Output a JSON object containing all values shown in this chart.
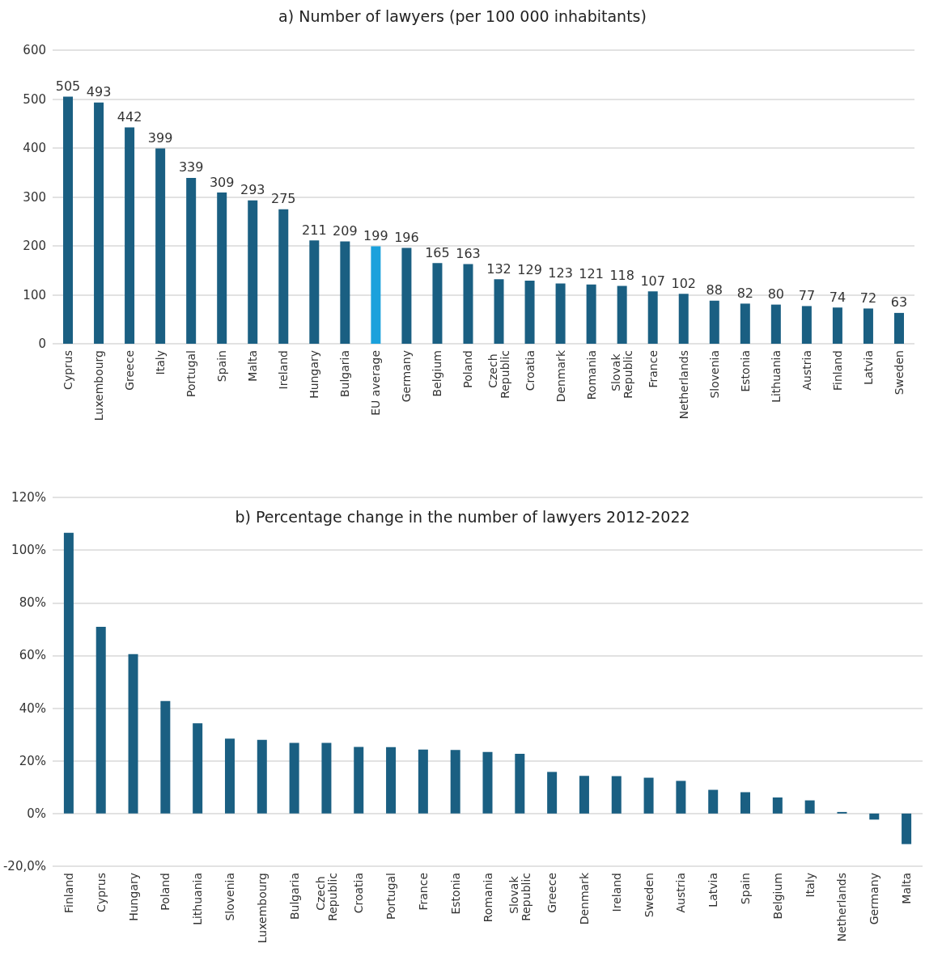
{
  "chart_data": [
    {
      "type": "bar",
      "title": "a) Number of lawyers (per 100 000 inhabitants)",
      "categories": [
        "Cyprus",
        "Luxembourg",
        "Greece",
        "Italy",
        "Portugal",
        "Spain",
        "Malta",
        "Ireland",
        "Hungary",
        "Bulgaria",
        "EU average",
        "Germany",
        "Belgium",
        "Poland",
        "Czech Republic",
        "Croatia",
        "Denmark",
        "Romania",
        "Slovak Republic",
        "France",
        "Netherlands",
        "Slovenia",
        "Estonia",
        "Lithuania",
        "Austria",
        "Finland",
        "Latvia",
        "Sweden"
      ],
      "values": [
        505,
        493,
        442,
        399,
        339,
        309,
        293,
        275,
        211,
        209,
        199,
        196,
        165,
        163,
        132,
        129,
        123,
        121,
        118,
        107,
        102,
        88,
        82,
        80,
        77,
        74,
        72,
        63
      ],
      "colors": [
        "#1a5f82",
        "#1a5f82",
        "#1a5f82",
        "#1a5f82",
        "#1a5f82",
        "#1a5f82",
        "#1a5f82",
        "#1a5f82",
        "#1a5f82",
        "#1a5f82",
        "#1ba1dc",
        "#1a5f82",
        "#1a5f82",
        "#1a5f82",
        "#1a5f82",
        "#1a5f82",
        "#1a5f82",
        "#1a5f82",
        "#1a5f82",
        "#1a5f82",
        "#1a5f82",
        "#1a5f82",
        "#1a5f82",
        "#1a5f82",
        "#1a5f82",
        "#1a5f82",
        "#1a5f82",
        "#1a5f82"
      ],
      "ylim": [
        0,
        600
      ],
      "yticks": [
        0,
        100,
        200,
        300,
        400,
        500,
        600
      ],
      "grid": "y",
      "data_labels": true
    },
    {
      "type": "bar",
      "title": "b) Percentage change in the number of lawyers 2012-2022",
      "categories": [
        "Finland",
        "Cyprus",
        "Hungary",
        "Poland",
        "Lithuania",
        "Slovenia",
        "Luxembourg",
        "Bulgaria",
        "Czech Republic",
        "Croatia",
        "Portugal",
        "France",
        "Estonia",
        "Romania",
        "Slovak Republic",
        "Greece",
        "Denmark",
        "Ireland",
        "Sweden",
        "Austria",
        "Latvia",
        "Spain",
        "Belgium",
        "Italy",
        "Netherlands",
        "Germany",
        "Malta"
      ],
      "values": [
        106.6,
        70.9,
        60.5,
        42.7,
        34.3,
        28.4,
        28.0,
        26.8,
        26.8,
        25.3,
        25.2,
        24.3,
        24.1,
        23.4,
        22.7,
        15.8,
        14.3,
        14.2,
        13.6,
        12.4,
        9.0,
        8.1,
        6.1,
        5.0,
        0.6,
        -2.3,
        -11.6
      ],
      "color": "#1a5f82",
      "ylim": [
        -20,
        120
      ],
      "yticks": [
        {
          "value": -20,
          "label": "-20,0%"
        },
        {
          "value": 0,
          "label": "0%"
        },
        {
          "value": 20,
          "label": "20%"
        },
        {
          "value": 40,
          "label": "40%"
        },
        {
          "value": 60,
          "label": "60%"
        },
        {
          "value": 80,
          "label": "80%"
        },
        {
          "value": 100,
          "label": "100%"
        },
        {
          "value": 120,
          "label": "120%"
        }
      ],
      "grid": "y"
    }
  ]
}
